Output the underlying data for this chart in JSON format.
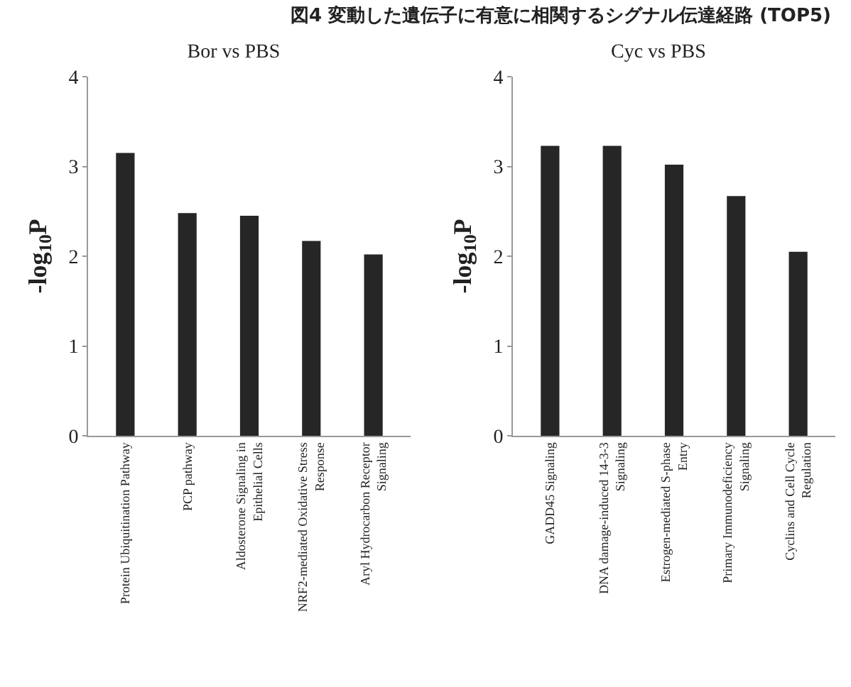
{
  "chart_data": [
    {
      "type": "bar",
      "title": "図4 変動した遺伝子に有意に相関するシグナル伝達経路 (TOP5)",
      "subtitle": "Bor vs PBS",
      "ylabel": "-log$_{10}$P",
      "categories": [
        "Protein Ubiquitination Pathway",
        "PCP pathway",
        "Aldosterone Signaling in Epithelial Cells",
        "NRF2-mediated Oxidative Stress Response",
        "Aryl Hydrocarbon Receptor Signaling"
      ],
      "values": [
        3.15,
        2.48,
        2.45,
        2.17,
        2.02
      ],
      "color": "#262626",
      "ylim": [
        0,
        4
      ],
      "yticks": [
        0,
        1,
        2,
        3,
        4
      ],
      "grid": false
    },
    {
      "type": "bar",
      "subtitle": "Cyc vs PBS",
      "ylabel": "-log$_{10}$P",
      "categories": [
        "GADD45 Signaling",
        "DNA damage-induced 14-3-3 Signaling",
        "Estrogen-mediated S-phase Entry",
        "Primary Immunodeficiency Signaling",
        "Cyclins and Cell Cycle Regulation"
      ],
      "values": [
        3.23,
        3.23,
        3.02,
        2.67,
        2.05
      ],
      "color": "#262626",
      "ylim": [
        0,
        4
      ],
      "yticks": [
        0,
        1,
        2,
        3,
        4
      ],
      "grid": false
    }
  ]
}
